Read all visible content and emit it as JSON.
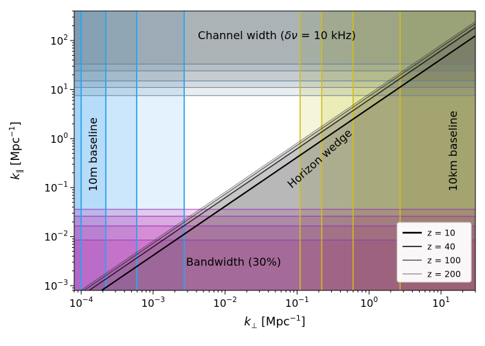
{
  "chart_data": {
    "type": "line",
    "x_scale": "log",
    "y_scale": "log",
    "xlim": [
      8e-05,
      30
    ],
    "ylim": [
      0.0008,
      400
    ],
    "xlabel": {
      "prefix": "k",
      "sub": "⊥",
      "suffix": " [Mpc",
      "exp": "−1",
      "close": "]"
    },
    "ylabel": {
      "prefix": "k",
      "sub": "∥",
      "suffix": " [Mpc",
      "exp": "−1",
      "close": "]"
    },
    "x_ticks": [
      {
        "value": 0.0001,
        "base": "10",
        "exp": "−4"
      },
      {
        "value": 0.001,
        "base": "10",
        "exp": "−3"
      },
      {
        "value": 0.01,
        "base": "10",
        "exp": "−2"
      },
      {
        "value": 0.1,
        "base": "10",
        "exp": "−1"
      },
      {
        "value": 1,
        "base": "10",
        "exp": "0"
      },
      {
        "value": 10,
        "base": "10",
        "exp": "1"
      }
    ],
    "y_ticks": [
      {
        "value": 0.001,
        "base": "10",
        "exp": "−3"
      },
      {
        "value": 0.01,
        "base": "10",
        "exp": "−2"
      },
      {
        "value": 0.1,
        "base": "10",
        "exp": "−1"
      },
      {
        "value": 1,
        "base": "10",
        "exp": "0"
      },
      {
        "value": 10,
        "base": "10",
        "exp": "1"
      },
      {
        "value": 100,
        "base": "10",
        "exp": "2"
      }
    ],
    "series": [
      {
        "name": "z = 10",
        "slope": 4.15,
        "color": "#000000",
        "width": 2.0,
        "opacity": 1.0,
        "kperp_min": 0.00059,
        "kpar_max": 7.5,
        "kperp_max": 2.7
      },
      {
        "name": "z = 40",
        "slope": 6.2,
        "color": "#000000",
        "width": 1.6,
        "opacity": 0.75,
        "kperp_min": 0.00022,
        "kpar_max": 15,
        "kperp_max": 0.6
      },
      {
        "name": "z = 100",
        "slope": 7.3,
        "color": "#000000",
        "width": 1.3,
        "opacity": 0.55,
        "kperp_min": 0.00014,
        "kpar_max": 24,
        "kperp_max": 0.22
      },
      {
        "name": "z = 200",
        "slope": 8.1,
        "color": "#000000",
        "width": 1.1,
        "opacity": 0.38,
        "kperp_min": 0.0001,
        "kpar_max": 33,
        "kperp_max": 0.11
      }
    ],
    "channel_width_lines": [
      7.5,
      11,
      15,
      24,
      33
    ],
    "bandwidth_lines": [
      0.0085,
      0.0165,
      0.026,
      0.036
    ],
    "short_baseline_lines": [
      0.0001,
      0.00022,
      0.00059,
      0.0027
    ],
    "long_baseline_lines": [
      0.11,
      0.22,
      0.6,
      2.7
    ],
    "region_colors": {
      "channel": "#56606e",
      "bandwidth": "#c2009a",
      "short_baseline": "#2e9cf0",
      "long_baseline": "#bebe12",
      "wedge": "#555555",
      "blue_line": "#2aa5ee",
      "yellow_line": "#d2be18",
      "magenta_line": "#9a2fb8",
      "slate_line": "#5880a2"
    },
    "annotations": {
      "channel": {
        "text_before": "Channel width (",
        "delta": "δ",
        "nu": "ν",
        "text_after": " = 10 kHz)"
      },
      "bandwidth": "Bandwidth (30%)",
      "short_baseline": "10m baseline",
      "long_baseline": "10km baseline",
      "wedge": "Horizon wedge"
    },
    "legend": {
      "position": "lower-right"
    }
  }
}
